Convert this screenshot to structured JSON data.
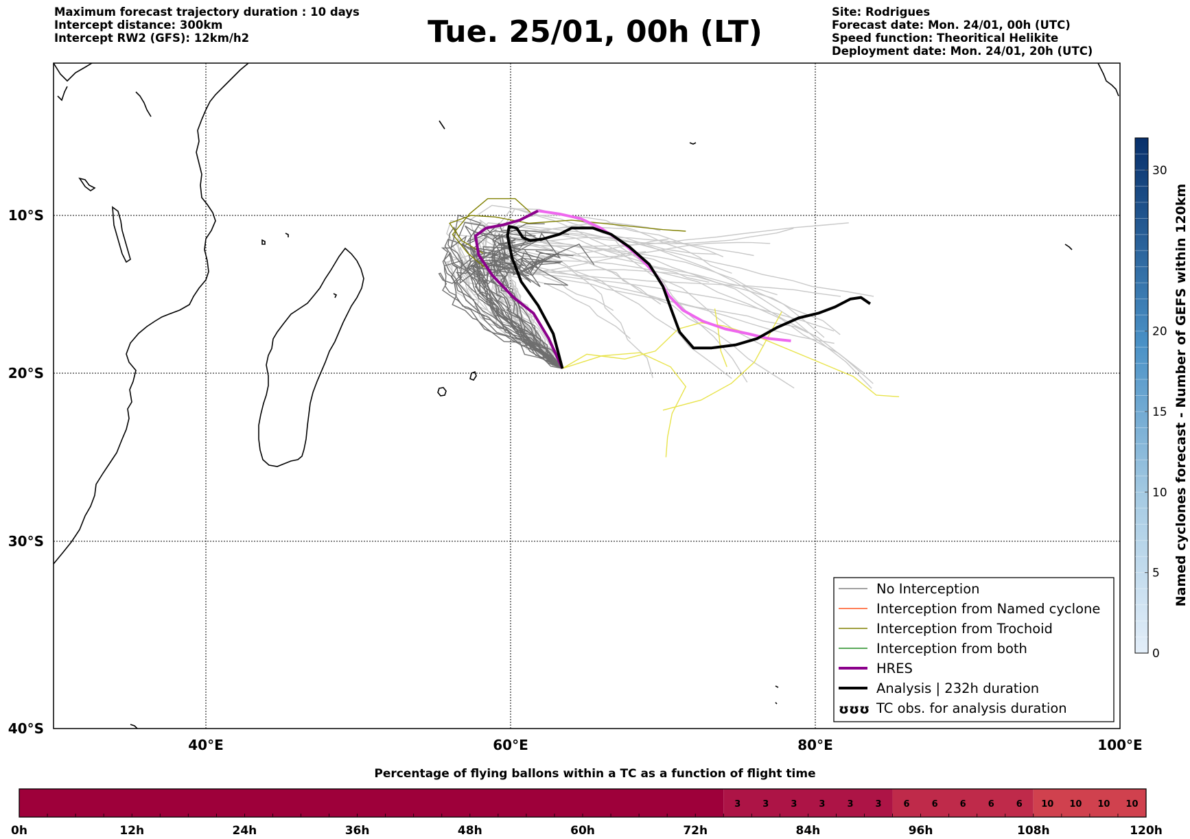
{
  "header": {
    "left": [
      "Maximum forecast trajectory duration : 10 days",
      "Intercept distance: 300km",
      "Intercept RW2 (GFS):  12km/h2"
    ],
    "title": "Tue. 25/01, 00h (LT)",
    "right": [
      "Site: Rodrigues",
      "Forecast date: Mon. 24/01, 00h (UTC)",
      "Speed function: Theoritical Helikite",
      "Deployment date: Mon. 24/01, 20h (UTC)"
    ]
  },
  "map": {
    "lon_range": [
      30,
      100
    ],
    "lat_range": [
      -40,
      0
    ],
    "lon_ticks": [
      {
        "value": 40,
        "label": "40°E"
      },
      {
        "value": 60,
        "label": "60°E"
      },
      {
        "value": 80,
        "label": "80°E"
      },
      {
        "value": 100,
        "label": "100°E"
      }
    ],
    "lat_ticks": [
      {
        "value": -10,
        "label": "10°S"
      },
      {
        "value": -20,
        "label": "20°S"
      },
      {
        "value": -30,
        "label": "30°S"
      },
      {
        "value": -40,
        "label": "40°S"
      }
    ],
    "grid": "dotted"
  },
  "colorbar": {
    "label": "Named cyclones forecast - Number of GEFS within 120km",
    "ticks": [
      "0",
      "5",
      "10",
      "15",
      "20",
      "30"
    ],
    "range": [
      0,
      32
    ]
  },
  "legend": {
    "items": [
      {
        "label": "No Interception",
        "color": "#808080",
        "style": "thin"
      },
      {
        "label": "Interception from Named cyclone",
        "color": "#ff5722",
        "style": "thin"
      },
      {
        "label": "Interception from Trochoid",
        "color": "#808000",
        "style": "thin"
      },
      {
        "label": "Interception from both",
        "color": "#228b22",
        "style": "thin"
      },
      {
        "label": "HRES",
        "color": "#8b008b",
        "style": "thick"
      },
      {
        "label": "Analysis | 232h duration",
        "color": "#000000",
        "style": "thick"
      },
      {
        "label": "TC obs. for analysis duration",
        "color": "#000000",
        "style": "symbol",
        "symbol": "ʊʊʊ"
      }
    ]
  },
  "percentage_bar": {
    "title": "Percentage of flying ballons within a TC as a function of flight time",
    "hours_max": 120,
    "tick_labels": [
      "0h",
      "12h",
      "24h",
      "36h",
      "48h",
      "60h",
      "72h",
      "84h",
      "96h",
      "108h",
      "120h"
    ],
    "segments": [
      {
        "from_h": 0,
        "to_h": 75,
        "value": "0",
        "color": "#9e003a"
      },
      {
        "from_h": 75,
        "to_h": 93,
        "value": "3",
        "color": "#ad1446"
      },
      {
        "from_h": 93,
        "to_h": 108,
        "value": "6",
        "color": "#bf2a4a"
      },
      {
        "from_h": 108,
        "to_h": 120,
        "value": "10",
        "color": "#d0414e"
      }
    ],
    "cell_values": [
      {
        "hour": 76.5,
        "value": "3"
      },
      {
        "hour": 79.5,
        "value": "3"
      },
      {
        "hour": 82.5,
        "value": "3"
      },
      {
        "hour": 85.5,
        "value": "3"
      },
      {
        "hour": 88.5,
        "value": "3"
      },
      {
        "hour": 91.5,
        "value": "3"
      },
      {
        "hour": 94.5,
        "value": "6"
      },
      {
        "hour": 97.5,
        "value": "6"
      },
      {
        "hour": 100.5,
        "value": "6"
      },
      {
        "hour": 103.5,
        "value": "6"
      },
      {
        "hour": 106.5,
        "value": "6"
      },
      {
        "hour": 109.5,
        "value": "10"
      },
      {
        "hour": 112.5,
        "value": "10"
      },
      {
        "hour": 115.5,
        "value": "10"
      },
      {
        "hour": 118.5,
        "value": "10"
      }
    ]
  },
  "trajectories": {
    "origin": {
      "lon": 63.4,
      "lat": -19.7
    },
    "hres": [
      [
        63.4,
        -19.7
      ],
      [
        62.5,
        -17.8
      ],
      [
        61.5,
        -16.2
      ],
      [
        60.2,
        -15.2
      ],
      [
        58.8,
        -13.8
      ],
      [
        57.9,
        -12.5
      ],
      [
        57.7,
        -11.3
      ],
      [
        58.4,
        -10.8
      ],
      [
        59.5,
        -10.6
      ],
      [
        60.6,
        -10.3
      ],
      [
        61.8,
        -9.7
      ],
      [
        63.2,
        -9.9
      ],
      [
        64.6,
        -10.2
      ],
      [
        65.9,
        -10.8
      ],
      [
        67.2,
        -11.6
      ],
      [
        68.4,
        -12.6
      ],
      [
        69.5,
        -13.7
      ],
      [
        70.4,
        -15.1
      ],
      [
        71.3,
        -16.0
      ],
      [
        72.6,
        -16.7
      ],
      [
        74.1,
        -17.2
      ],
      [
        75.6,
        -17.5
      ],
      [
        76.9,
        -17.8
      ],
      [
        78.4,
        -17.95
      ]
    ],
    "analysis": [
      [
        63.4,
        -19.7
      ],
      [
        62.8,
        -17.5
      ],
      [
        61.8,
        -15.7
      ],
      [
        60.7,
        -14.2
      ],
      [
        60.1,
        -12.7
      ],
      [
        59.8,
        -11.3
      ],
      [
        59.9,
        -10.7
      ],
      [
        60.4,
        -10.8
      ],
      [
        60.8,
        -11.4
      ],
      [
        61.3,
        -11.6
      ],
      [
        62.1,
        -11.5
      ],
      [
        63.2,
        -11.2
      ],
      [
        64.0,
        -10.8
      ],
      [
        65.4,
        -10.8
      ],
      [
        66.6,
        -11.2
      ],
      [
        67.8,
        -12.0
      ],
      [
        69.1,
        -13.1
      ],
      [
        70.0,
        -14.5
      ],
      [
        70.6,
        -16.1
      ],
      [
        71.1,
        -17.4
      ],
      [
        72.0,
        -18.4
      ],
      [
        73.2,
        -18.4
      ],
      [
        74.8,
        -18.2
      ],
      [
        76.2,
        -17.8
      ],
      [
        77.5,
        -17.1
      ],
      [
        78.9,
        -16.5
      ],
      [
        80.2,
        -16.2
      ],
      [
        81.3,
        -15.8
      ],
      [
        82.3,
        -15.3
      ],
      [
        83.0,
        -15.2
      ],
      [
        83.6,
        -15.6
      ]
    ]
  }
}
